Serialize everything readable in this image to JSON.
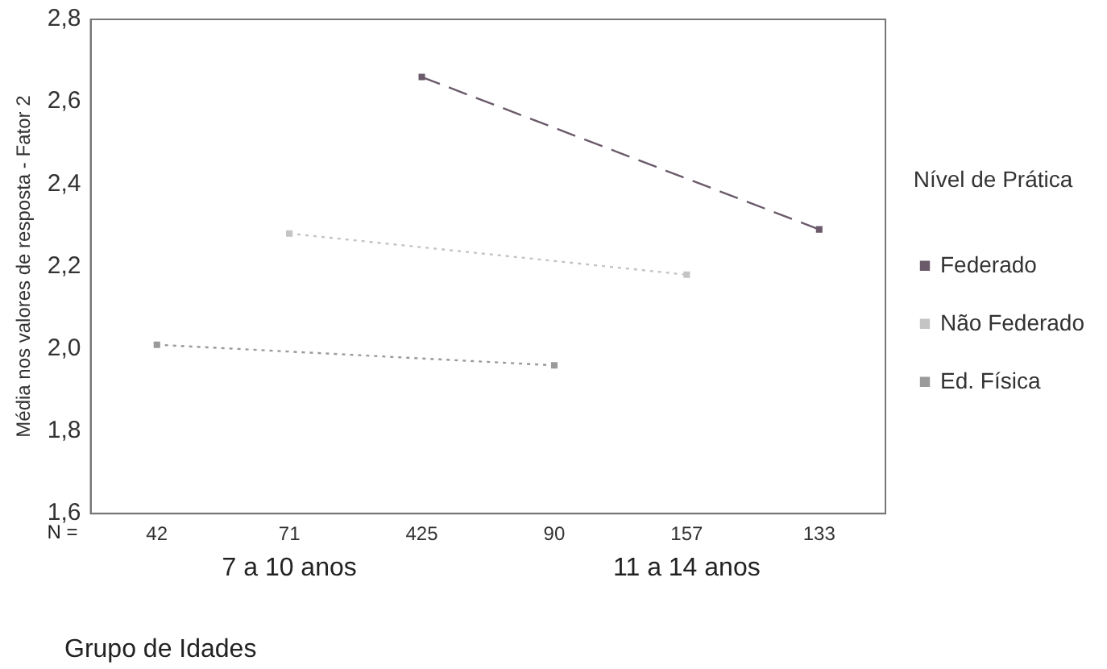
{
  "chart_data": {
    "type": "line",
    "xlabel": "Grupo de Idades",
    "ylabel": "Média nos valores de resposta - Fator 2",
    "legend_title": "Nível de Prática",
    "categories": [
      "42",
      "71",
      "425",
      "90",
      "157",
      "133"
    ],
    "series": [
      {
        "name": "Federado",
        "color": "#6a5a6a",
        "line_style": "dashed",
        "values": [
          null,
          null,
          2.66,
          null,
          null,
          2.29
        ]
      },
      {
        "name": "Não Federado",
        "color": "#c4c4c4",
        "line_style": "dotted",
        "values": [
          null,
          2.28,
          null,
          null,
          2.18,
          null
        ]
      },
      {
        "name": "Ed. Física",
        "color": "#9a9a9a",
        "line_style": "dotted",
        "values": [
          2.01,
          null,
          null,
          1.96,
          null,
          null
        ]
      }
    ],
    "annotations": [
      "N =",
      "7 a 10 anos",
      "11 a 14 anos"
    ],
    "ylim": [
      1.6,
      2.8
    ],
    "yticks": [
      {
        "value": 1.6,
        "label": "1,6"
      },
      {
        "value": 1.8,
        "label": "1,8"
      },
      {
        "value": 2.0,
        "label": "2,0"
      },
      {
        "value": 2.2,
        "label": "2,2"
      },
      {
        "value": 2.4,
        "label": "2,4"
      },
      {
        "value": 2.6,
        "label": "2,6"
      },
      {
        "value": 2.8,
        "label": "2,8"
      }
    ],
    "grid": false,
    "legend": "right",
    "marker": "square"
  }
}
